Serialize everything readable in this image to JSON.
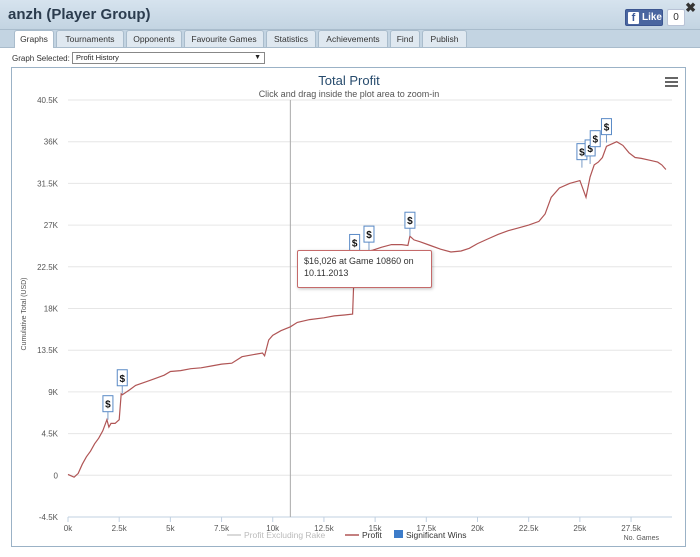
{
  "window": {
    "title": "anzh (Player Group)",
    "close_icon": "close-icon"
  },
  "facebook": {
    "like_label": "Like",
    "like_count": "0"
  },
  "tabs": [
    {
      "label": "Graphs",
      "active": true
    },
    {
      "label": "Tournaments",
      "active": false
    },
    {
      "label": "Opponents",
      "active": false
    },
    {
      "label": "Favourite Games",
      "active": false
    },
    {
      "label": "Statistics",
      "active": false
    },
    {
      "label": "Achievements",
      "active": false
    },
    {
      "label": "Find",
      "active": false
    },
    {
      "label": "Publish",
      "active": false
    }
  ],
  "graph_selector": {
    "label": "Graph Selected:",
    "value": "Profit History"
  },
  "colors": {
    "profit_line": "#b05555",
    "rake_line": "#cccccc",
    "wins_badge": "#3d7cc9",
    "crosshair": "#aaaaaa"
  },
  "tooltip": {
    "line1": "$16,026 at Game 10860 on",
    "line2": "10.11.2013"
  },
  "chart_data": {
    "type": "line",
    "title": "Total Profit",
    "subtitle": "Click and drag inside the plot area to zoom-in",
    "xlabel": "No. Games",
    "ylabel": "Cumulative Total (USD)",
    "xlim": [
      0,
      29500
    ],
    "ylim": [
      -4500,
      40500
    ],
    "x_ticks": [
      0,
      2500,
      5000,
      7500,
      10000,
      12500,
      15000,
      17500,
      20000,
      22500,
      25000,
      27500
    ],
    "x_tick_labels": [
      "0k",
      "2.5k",
      "5k",
      "7.5k",
      "10k",
      "12.5k",
      "15k",
      "17.5k",
      "20k",
      "22.5k",
      "25k",
      "27.5k"
    ],
    "y_ticks": [
      -4500,
      0,
      4500,
      9000,
      13500,
      18000,
      22500,
      27000,
      31500,
      36000,
      40500
    ],
    "y_tick_labels": [
      "-4.5K",
      "0",
      "4.5K",
      "9K",
      "13.5K",
      "18K",
      "22.5K",
      "27K",
      "31.5K",
      "36K",
      "40.5K"
    ],
    "legend": [
      "Profit Excluding Rake",
      "Profit",
      "Significant Wins"
    ],
    "crosshair_x": 10860,
    "series": [
      {
        "name": "Profit",
        "x": [
          0,
          300,
          500,
          700,
          900,
          1100,
          1300,
          1500,
          1700,
          1900,
          2000,
          2100,
          2300,
          2500,
          2600,
          2650,
          2800,
          3000,
          3300,
          3700,
          4200,
          4700,
          5000,
          5500,
          6000,
          6500,
          7000,
          7500,
          8000,
          8500,
          9000,
          9500,
          9600,
          9800,
          10000,
          10400,
          10860,
          11200,
          11800,
          12500,
          13000,
          13500,
          13900,
          14000,
          14100,
          14500,
          14900,
          15300,
          15800,
          16300,
          16600,
          16700,
          16900,
          17200,
          17700,
          18200,
          18700,
          19200,
          19600,
          20000,
          20500,
          21000,
          21500,
          22000,
          22500,
          23000,
          23300,
          23600,
          24000,
          24500,
          25000,
          25300,
          25500,
          25700,
          25900,
          26100,
          26300,
          26600,
          26800,
          27100,
          27400,
          27700,
          28000,
          28400,
          28800,
          29000,
          29200
        ],
        "y": [
          100,
          -200,
          200,
          1200,
          2000,
          2600,
          3400,
          4000,
          4800,
          6000,
          5200,
          5600,
          5600,
          6000,
          8800,
          8700,
          8900,
          9200,
          9700,
          10000,
          10400,
          10800,
          11200,
          11300,
          11500,
          11600,
          11800,
          12000,
          12100,
          12800,
          13000,
          13200,
          12900,
          14600,
          15100,
          15600,
          16026,
          16500,
          16800,
          17000,
          17200,
          17300,
          17400,
          23400,
          23600,
          24100,
          24300,
          24600,
          24900,
          24900,
          24800,
          25800,
          25400,
          25200,
          24800,
          24400,
          24100,
          24200,
          24500,
          25000,
          25500,
          26000,
          26400,
          26700,
          27000,
          27400,
          28200,
          30000,
          31000,
          31500,
          31800,
          30000,
          32200,
          33500,
          33800,
          34300,
          35500,
          35800,
          36000,
          35600,
          34800,
          34300,
          34200,
          34000,
          33800,
          33500,
          33000
        ]
      },
      {
        "name": "Significant Wins",
        "x": [
          1950,
          2650,
          14000,
          14700,
          16700,
          25100,
          25500,
          25750,
          26300
        ],
        "y": [
          6000,
          8800,
          23400,
          24300,
          25800,
          33200,
          33600,
          34600,
          35900
        ]
      }
    ]
  }
}
